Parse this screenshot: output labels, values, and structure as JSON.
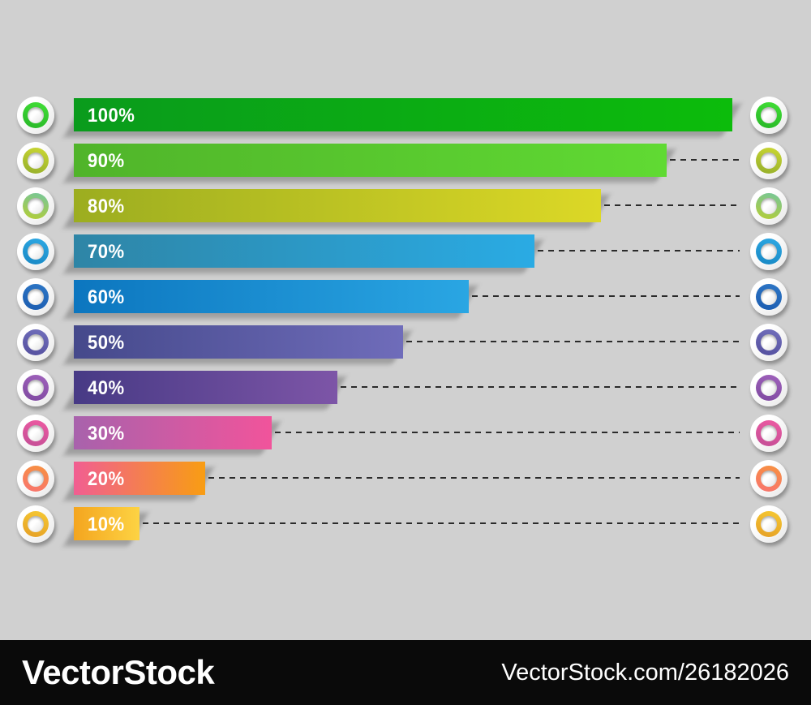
{
  "page": {
    "background": "#d0d0d0",
    "connector_color": "#2b2b2b"
  },
  "chart_data": {
    "type": "bar",
    "orientation": "horizontal",
    "title": "",
    "categories": [
      "100%",
      "90%",
      "80%",
      "70%",
      "60%",
      "50%",
      "40%",
      "30%",
      "20%",
      "10%"
    ],
    "values": [
      100,
      90,
      80,
      70,
      60,
      50,
      40,
      30,
      20,
      10
    ],
    "value_unit": "percent",
    "xlim": [
      0,
      100
    ],
    "bar_label_position": "inside-left",
    "connector_style": "dashed",
    "grid": false,
    "legend": false
  },
  "rows": [
    {
      "label": "100%",
      "value": 100,
      "bar": [
        "#0a9b1c",
        "#0cbc0b"
      ],
      "ring": [
        "#42df37",
        "#27b627"
      ]
    },
    {
      "label": "90%",
      "value": 90,
      "bar": [
        "#50b42a",
        "#60da33"
      ],
      "ring": [
        "#ccd834",
        "#94ae2b"
      ]
    },
    {
      "label": "80%",
      "value": 80,
      "bar": [
        "#9cad20",
        "#dcd826"
      ],
      "ring": [
        "#74c69d",
        "#b5cd33"
      ]
    },
    {
      "label": "70%",
      "value": 70,
      "bar": [
        "#2e85a6",
        "#2aabe4"
      ],
      "ring": [
        "#2ea9e4",
        "#1888c4"
      ]
    },
    {
      "label": "60%",
      "value": 60,
      "bar": [
        "#0c76bf",
        "#2aa6e3"
      ],
      "ring": [
        "#2e77c6",
        "#1b5cb0"
      ]
    },
    {
      "label": "50%",
      "value": 50,
      "bar": [
        "#45498b",
        "#6f6cba"
      ],
      "ring": [
        "#7270bc",
        "#544f9e"
      ]
    },
    {
      "label": "40%",
      "value": 40,
      "bar": [
        "#473a85",
        "#7d55a7"
      ],
      "ring": [
        "#a062bc",
        "#7e49a0"
      ]
    },
    {
      "label": "30%",
      "value": 30,
      "bar": [
        "#a862ac",
        "#f1549b"
      ],
      "ring": [
        "#ee5ba2",
        "#c34e96"
      ]
    },
    {
      "label": "20%",
      "value": 20,
      "bar": [
        "#f15e92",
        "#f89d13"
      ],
      "ring": [
        "#f7923f",
        "#f87370"
      ]
    },
    {
      "label": "10%",
      "value": 10,
      "bar": [
        "#f4a51f",
        "#fdd343"
      ],
      "ring": [
        "#f6c933",
        "#e59f25"
      ]
    }
  ],
  "footer": {
    "brand": "VectorStock",
    "url": "VectorStock.com/26182026",
    "background": "#0a0a0a",
    "text_color": "#ffffff"
  }
}
